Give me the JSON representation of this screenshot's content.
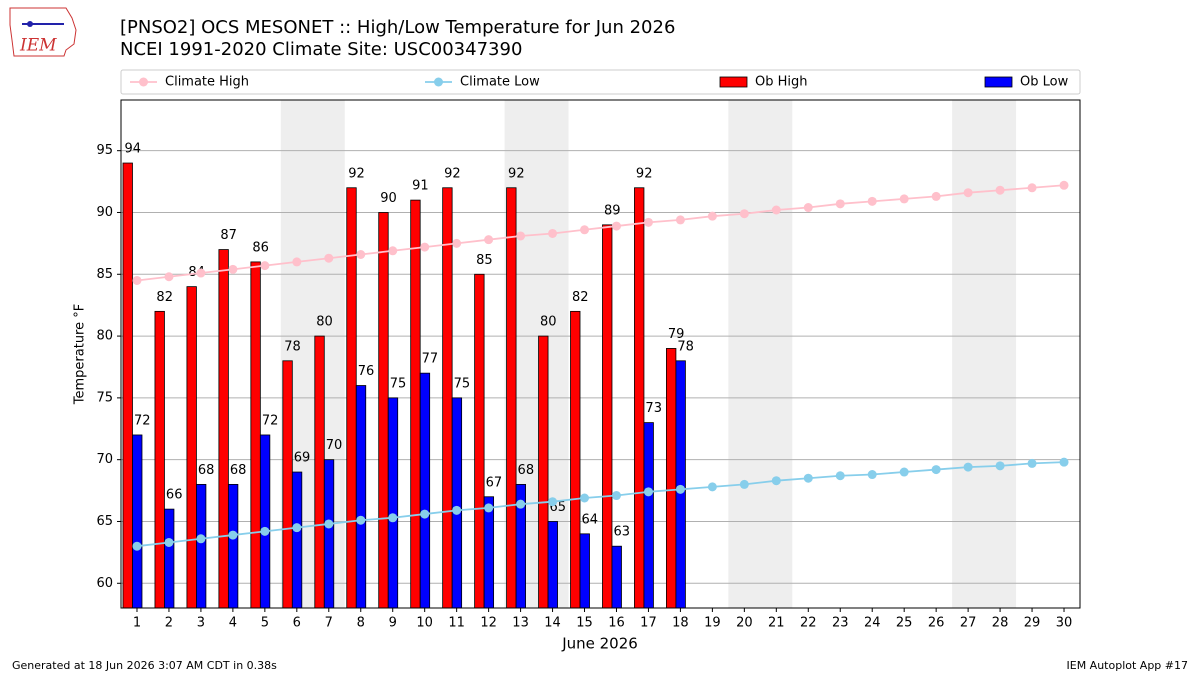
{
  "chart_data": {
    "type": "bar",
    "title": "[PNSO2] OCS MESONET :: High/Low Temperature for Jun 2026",
    "subtitle": "NCEI 1991-2020 Climate Site: USC00347390",
    "logo_text": "IEM",
    "xlabel": "June 2026",
    "ylabel": "Temperature °F",
    "footer_left": "Generated at 18 Jun 2026 3:07 AM CDT in 0.38s",
    "footer_right": "IEM Autoplot App #17",
    "categories": [
      "1",
      "2",
      "3",
      "4",
      "5",
      "6",
      "7",
      "8",
      "9",
      "10",
      "11",
      "12",
      "13",
      "14",
      "15",
      "16",
      "17",
      "18",
      "19",
      "20",
      "21",
      "22",
      "23",
      "24",
      "25",
      "26",
      "27",
      "28",
      "29",
      "30"
    ],
    "ylim": [
      58,
      99.1
    ],
    "yticks": [
      60,
      65,
      70,
      75,
      80,
      85,
      90,
      95
    ],
    "grid": true,
    "series": [
      {
        "name": "Climate High",
        "type": "line",
        "color": "#ffc0cb",
        "values": [
          84.5,
          84.8,
          85.1,
          85.4,
          85.7,
          86.0,
          86.3,
          86.6,
          86.9,
          87.2,
          87.5,
          87.8,
          88.1,
          88.3,
          88.6,
          88.9,
          89.2,
          89.4,
          89.7,
          89.9,
          90.2,
          90.4,
          90.7,
          90.9,
          91.1,
          91.3,
          91.6,
          91.8,
          92.0,
          92.2
        ]
      },
      {
        "name": "Climate Low",
        "type": "line",
        "color": "#87ceeb",
        "values": [
          63.0,
          63.3,
          63.6,
          63.9,
          64.2,
          64.5,
          64.8,
          65.1,
          65.3,
          65.6,
          65.9,
          66.1,
          66.4,
          66.6,
          66.9,
          67.1,
          67.4,
          67.6,
          67.8,
          68.0,
          68.3,
          68.5,
          68.7,
          68.8,
          69.0,
          69.2,
          69.4,
          69.5,
          69.7,
          69.8
        ]
      },
      {
        "name": "Ob High",
        "type": "bar",
        "color": "#ff0000",
        "values": [
          94,
          82,
          84,
          87,
          86,
          78,
          80,
          92,
          90,
          91,
          92,
          85,
          92,
          80,
          82,
          89,
          92,
          79,
          null,
          null,
          null,
          null,
          null,
          null,
          null,
          null,
          null,
          null,
          null,
          null
        ]
      },
      {
        "name": "Ob Low",
        "type": "bar",
        "color": "#0000ff",
        "values": [
          72,
          66,
          68,
          68,
          72,
          69,
          70,
          76,
          75,
          77,
          75,
          67,
          68,
          65,
          64,
          63,
          73,
          78,
          null,
          null,
          null,
          null,
          null,
          null,
          null,
          null,
          null,
          null,
          null,
          null
        ]
      }
    ]
  }
}
